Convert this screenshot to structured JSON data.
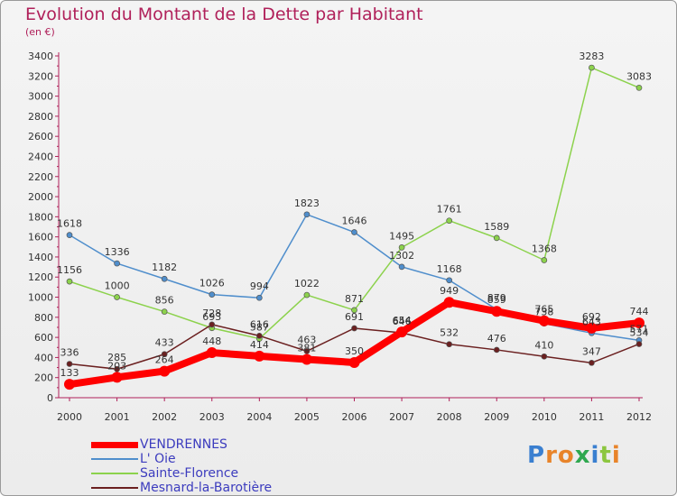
{
  "title": "Evolution du Montant de la Dette par Habitant",
  "unit_label": "(en €)",
  "logo_text": "Proxiti",
  "colors": {
    "title": "#b0205a",
    "axis": "#b0205a",
    "legend_text": "#3c3cbe"
  },
  "chart_data": {
    "type": "line",
    "title": "Evolution du Montant de la Dette par Habitant",
    "subtitle": "(en €)",
    "xlabel": "",
    "ylabel": "",
    "x": [
      "2000",
      "2001",
      "2002",
      "2003",
      "2004",
      "2005",
      "2006",
      "2007",
      "2008",
      "2009",
      "2010",
      "2011",
      "2012"
    ],
    "yticks": [
      0,
      200,
      400,
      600,
      800,
      1000,
      1200,
      1400,
      1600,
      1800,
      2000,
      2200,
      2400,
      2600,
      2800,
      3000,
      3200,
      3400
    ],
    "ylim": [
      0,
      3400
    ],
    "grid": false,
    "legend_position": "bottom-left",
    "series": [
      {
        "name": "VENDRENNES",
        "color": "#ff0000",
        "width": 8,
        "values": [
          133,
          203,
          264,
          448,
          414,
          381,
          350,
          654,
          949,
          859,
          765,
          692,
          744
        ]
      },
      {
        "name": "L' Oie",
        "color": "#4f8ecc",
        "width": 1.5,
        "values": [
          1618,
          1336,
          1182,
          1026,
          994,
          1823,
          1646,
          1302,
          1168,
          879,
          738,
          643,
          571
        ]
      },
      {
        "name": "Sainte-Florence",
        "color": "#8cd24c",
        "width": 1.5,
        "values": [
          1156,
          1000,
          856,
          693,
          587,
          1022,
          871,
          1495,
          1761,
          1589,
          1368,
          3283,
          3083
        ]
      },
      {
        "name": "Mesnard-la-Barotière",
        "color": "#6b2020",
        "width": 1.5,
        "values": [
          336,
          285,
          433,
          728,
          616,
          463,
          691,
          646,
          532,
          476,
          410,
          347,
          534
        ]
      }
    ]
  }
}
